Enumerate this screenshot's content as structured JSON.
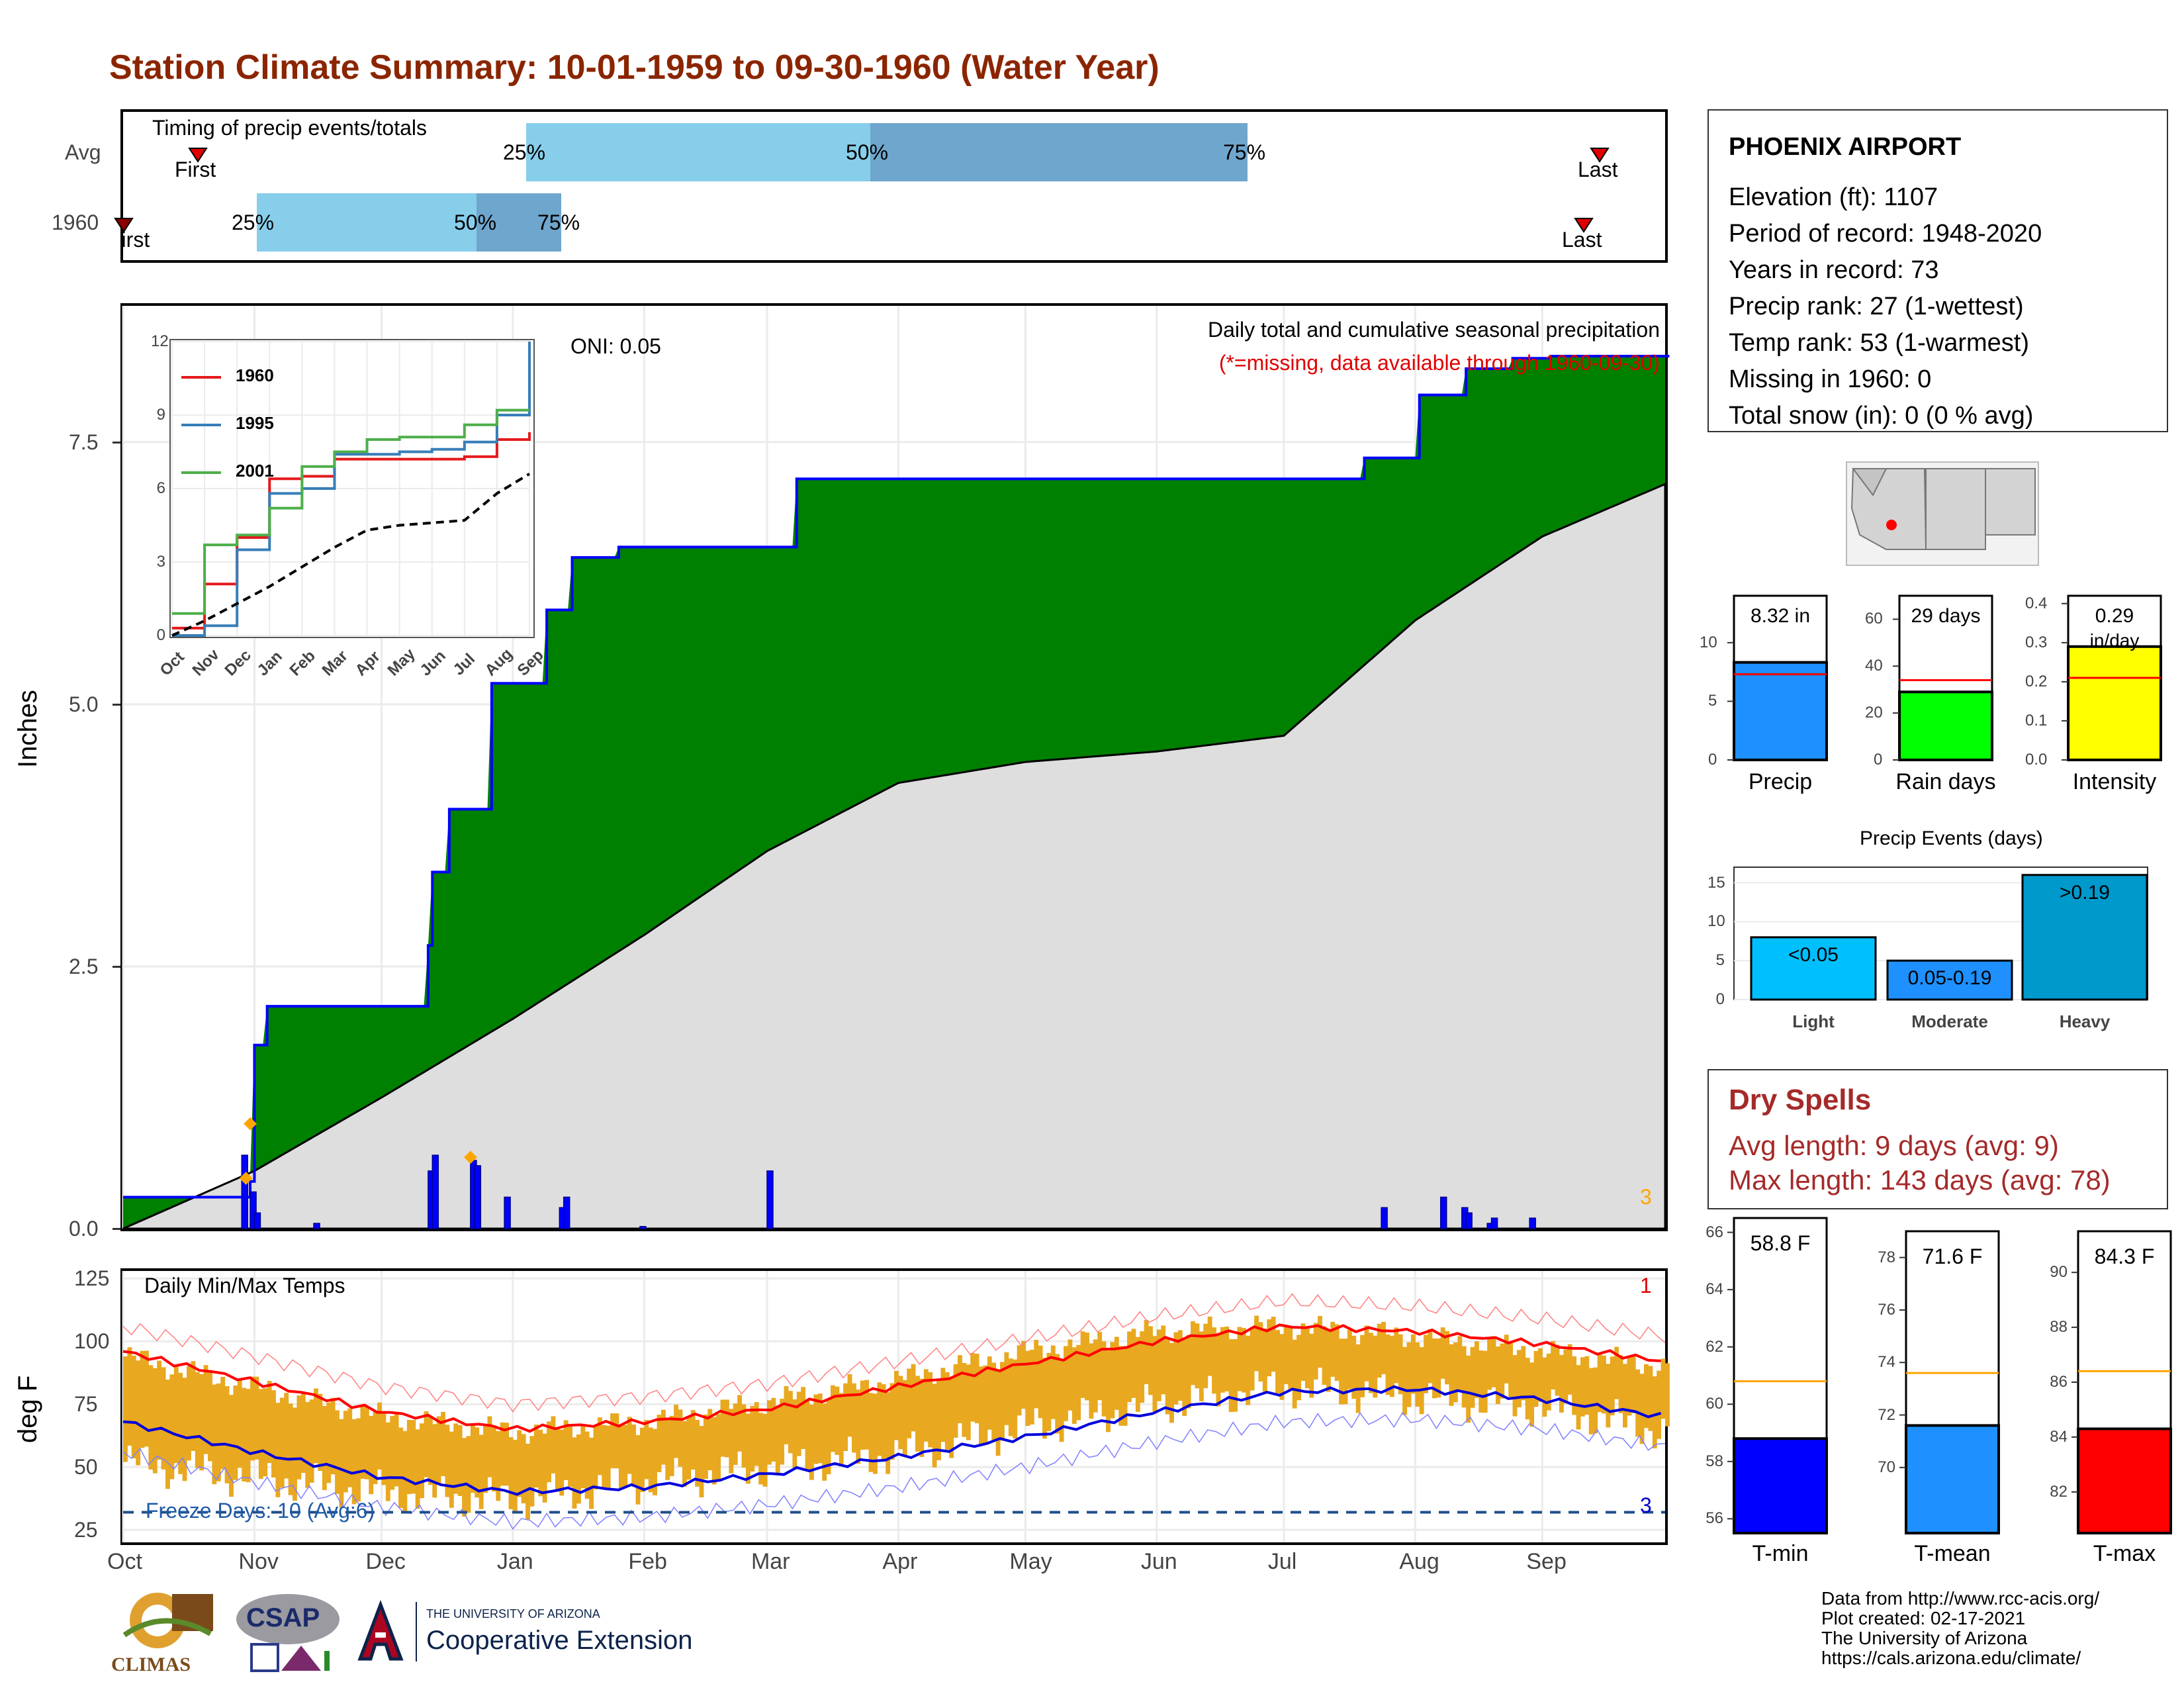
{
  "title": "Station Climate Summary: 10-01-1959 to 09-30-1960 (Water Year)",
  "timing": {
    "heading": "Timing of precip events/totals",
    "row_labels": [
      "Avg",
      "1960"
    ],
    "avg": {
      "first_label": "First",
      "last_label": "Last",
      "p25": "25%",
      "p50": "50%",
      "p75": "75%"
    },
    "y1960": {
      "first_label": "First",
      "last_label": "Last",
      "p25": "25%",
      "p50": "50%",
      "p75": "75%"
    }
  },
  "station": {
    "name": "PHOENIX AIRPORT",
    "lines": [
      "Elevation (ft): 1107",
      "Period of record: 1948-2020",
      "Years in record: 73",
      "Precip rank: 27 (1-wettest)",
      "Temp rank: 53 (1-warmest)",
      "Missing in 1960: 0",
      "Total snow (in): 0 (0 % avg)"
    ]
  },
  "main_precip": {
    "ylabel": "Inches",
    "yticks": [
      "0.0",
      "2.5",
      "5.0",
      "7.5"
    ],
    "header": "Daily total and cumulative seasonal precipitation",
    "subheader": "(*=missing, data available through 1960-09-30)",
    "oni": "ONI: 0.05",
    "corner_count": "3",
    "colors": {
      "surplus": "#008000",
      "deficit": "#8b4513",
      "avg_fill": "#dedede",
      "cum_line": "#0000ff",
      "daily": "#0000ff"
    }
  },
  "inset": {
    "xticks": [
      "Oct",
      "Nov",
      "Dec",
      "Jan",
      "Feb",
      "Mar",
      "Apr",
      "May",
      "Jun",
      "Jul",
      "Aug",
      "Sep"
    ],
    "yticks": [
      "0",
      "3",
      "6",
      "9",
      "12"
    ],
    "legend": [
      "1960",
      "1995",
      "2001"
    ],
    "colors": [
      "#e41a1c",
      "#377eb8",
      "#4daf4a"
    ]
  },
  "temps": {
    "heading": "Daily Min/Max Temps",
    "ylabel": "deg F",
    "yticks": [
      "25",
      "50",
      "75",
      "100",
      "125"
    ],
    "xticks": [
      "Oct",
      "Nov",
      "Dec",
      "Jan",
      "Feb",
      "Mar",
      "Apr",
      "May",
      "Jun",
      "Jul",
      "Aug",
      "Sep"
    ],
    "freeze": "Freeze Days: 10 (Avg:6)",
    "max_count": "1",
    "min_count": "3"
  },
  "bars_small": {
    "precip": {
      "value": "8.32 in",
      "label": "Precip",
      "yticks": [
        "0",
        "5",
        "10"
      ]
    },
    "raindays": {
      "value": "29 days",
      "label": "Rain days",
      "yticks": [
        "0",
        "20",
        "40",
        "60"
      ]
    },
    "intensity": {
      "value": "0.29",
      "unit": "in/day",
      "label": "Intensity",
      "yticks": [
        "0.0",
        "0.1",
        "0.2",
        "0.3",
        "0.4"
      ]
    }
  },
  "events": {
    "title": "Precip Events (days)",
    "yticks": [
      "0",
      "5",
      "10",
      "15"
    ],
    "categories": [
      "Light",
      "Moderate",
      "Heavy"
    ],
    "bar_labels": [
      "<0.05",
      "0.05-0.19",
      ">0.19"
    ]
  },
  "dry_spells": {
    "title": "Dry Spells",
    "avg": "Avg length: 9 days (avg: 9)",
    "max": "Max length: 143 days (avg: 78)"
  },
  "temp_bars": {
    "tmin": {
      "value": "58.8 F",
      "label": "T-min",
      "yticks": [
        "56",
        "58",
        "60",
        "62",
        "64",
        "66"
      ]
    },
    "tmean": {
      "value": "71.6 F",
      "label": "T-mean",
      "yticks": [
        "70",
        "72",
        "74",
        "76",
        "78"
      ]
    },
    "tmax": {
      "value": "84.3 F",
      "label": "T-max",
      "yticks": [
        "82",
        "84",
        "86",
        "88",
        "90"
      ]
    }
  },
  "footer": [
    "Data from http://www.rcc-acis.org/",
    "Plot created: 02-17-2021",
    "The University of Arizona",
    "https://cals.arizona.edu/climate/"
  ],
  "logos": {
    "climas": "CLIMAS",
    "csap": "CSAP",
    "ua_small": "THE UNIVERSITY OF ARIZONA",
    "coop": "Cooperative Extension"
  },
  "chart_data": [
    {
      "type": "area",
      "name": "cumulative precipitation",
      "x_months": [
        "Oct",
        "Nov",
        "Dec",
        "Jan",
        "Feb",
        "Mar",
        "Apr",
        "May",
        "Jun",
        "Jul",
        "Aug",
        "Sep"
      ],
      "ylim": [
        0,
        8.8
      ],
      "cumulative_1960_steps": [
        [
          0,
          0.3
        ],
        [
          30,
          0.45
        ],
        [
          31,
          1.75
        ],
        [
          34,
          2.12
        ],
        [
          71,
          2.12
        ],
        [
          72,
          2.7
        ],
        [
          73,
          3.4
        ],
        [
          77,
          4.0
        ],
        [
          86,
          4.0
        ],
        [
          87,
          5.2
        ],
        [
          95,
          5.2
        ],
        [
          100,
          5.9
        ],
        [
          106,
          6.4
        ],
        [
          117,
          6.5
        ],
        [
          158,
          6.5
        ],
        [
          159,
          7.15
        ],
        [
          292,
          7.15
        ],
        [
          293,
          7.35
        ],
        [
          305,
          7.35
        ],
        [
          306,
          7.95
        ],
        [
          316,
          7.95
        ],
        [
          317,
          8.2
        ],
        [
          322,
          8.2
        ],
        [
          323,
          8.2
        ],
        [
          328,
          8.3
        ],
        [
          337,
          8.32
        ],
        [
          364,
          8.32
        ]
      ],
      "average_cumulative": [
        [
          0,
          0.0
        ],
        [
          31,
          0.55
        ],
        [
          61,
          1.25
        ],
        [
          92,
          2.0
        ],
        [
          123,
          2.8
        ],
        [
          152,
          3.6
        ],
        [
          183,
          4.25
        ],
        [
          213,
          4.45
        ],
        [
          244,
          4.55
        ],
        [
          274,
          4.7
        ],
        [
          305,
          5.8
        ],
        [
          335,
          6.6
        ],
        [
          364,
          7.1
        ]
      ],
      "daily_precip": [
        [
          28,
          0.7
        ],
        [
          30,
          0.35
        ],
        [
          31,
          0.15
        ],
        [
          45,
          0.05
        ],
        [
          72,
          0.55
        ],
        [
          73,
          0.7
        ],
        [
          82,
          0.65
        ],
        [
          83,
          0.6
        ],
        [
          90,
          0.3
        ],
        [
          103,
          0.2
        ],
        [
          104,
          0.3
        ],
        [
          122,
          0.02
        ],
        [
          152,
          0.55
        ],
        [
          297,
          0.2
        ],
        [
          311,
          0.3
        ],
        [
          316,
          0.2
        ],
        [
          317,
          0.15
        ],
        [
          322,
          0.05
        ],
        [
          323,
          0.1
        ],
        [
          332,
          0.1
        ]
      ]
    },
    {
      "type": "line",
      "name": "inset cumulative precipitation",
      "x": [
        "Oct",
        "Nov",
        "Dec",
        "Jan",
        "Feb",
        "Mar",
        "Apr",
        "May",
        "Jun",
        "Jul",
        "Aug",
        "Sep"
      ],
      "ylim": [
        0,
        12
      ],
      "series": [
        {
          "name": "1960",
          "values": [
            0.3,
            2.1,
            4.0,
            6.4,
            6.5,
            7.2,
            7.2,
            7.2,
            7.2,
            7.3,
            8.0,
            8.3
          ]
        },
        {
          "name": "1995",
          "values": [
            0.0,
            0.4,
            3.5,
            5.8,
            6.0,
            7.4,
            7.4,
            7.5,
            7.6,
            7.9,
            9.0,
            12.0
          ]
        },
        {
          "name": "2001",
          "values": [
            0.9,
            3.7,
            4.1,
            5.2,
            6.9,
            7.5,
            8.0,
            8.1,
            8.1,
            8.6,
            9.2,
            9.2
          ]
        },
        {
          "values": [
            0.0,
            0.6,
            1.3,
            2.0,
            2.8,
            3.6,
            4.3,
            4.5,
            4.6,
            4.7,
            5.8,
            6.6
          ]
        }
      ]
    },
    {
      "type": "line",
      "name": "daily temperatures",
      "ylim": [
        20,
        128
      ],
      "series": [
        {
          "name": "Daily Min/Max Temps",
          "values": [
            [
              0,
              52,
              94
            ],
            [
              30,
              46,
              82
            ],
            [
              61,
              40,
              70
            ],
            [
              92,
              37,
              64
            ],
            [
              123,
              44,
              68
            ],
            [
              152,
              50,
              76
            ],
            [
              183,
              55,
              85
            ],
            [
              213,
              66,
              96
            ],
            [
              244,
              75,
              104
            ],
            [
              274,
              82,
              106
            ],
            [
              305,
              78,
              102
            ],
            [
              335,
              74,
              96
            ],
            [
              364,
              64,
              90
            ]
          ]
        },
        {
          "name": "avg max",
          "values": [
            96,
            84,
            72,
            65,
            68,
            73,
            82,
            91,
            100,
            106,
            104,
            99,
            92
          ]
        },
        {
          "name": "avg min",
          "values": [
            68,
            56,
            46,
            40,
            42,
            47,
            54,
            62,
            72,
            80,
            81,
            77,
            70
          ]
        }
      ]
    },
    {
      "type": "bar",
      "name": "Precip",
      "categories": [
        "1960"
      ],
      "values": [
        8.32
      ],
      "reference": 7.3,
      "ylim": [
        0,
        14
      ]
    },
    {
      "type": "bar",
      "name": "Rain days",
      "categories": [
        "1960"
      ],
      "values": [
        29
      ],
      "reference": 34,
      "ylim": [
        0,
        70
      ]
    },
    {
      "type": "bar",
      "name": "Intensity",
      "categories": [
        "1960"
      ],
      "values": [
        0.29
      ],
      "reference": 0.21,
      "ylim": [
        0,
        0.42
      ]
    },
    {
      "type": "bar",
      "name": "Precip Events (days)",
      "categories": [
        "Light",
        "Moderate",
        "Heavy"
      ],
      "values": [
        8,
        5,
        16
      ],
      "ylim": [
        0,
        17
      ]
    },
    {
      "type": "bar",
      "name": "T-min",
      "categories": [
        "1960"
      ],
      "values": [
        58.8
      ],
      "reference": 60.8,
      "ylim": [
        55.5,
        66.5
      ]
    },
    {
      "type": "bar",
      "name": "T-mean",
      "categories": [
        "1960"
      ],
      "values": [
        71.6
      ],
      "reference": 73.6,
      "ylim": [
        67.5,
        79
      ]
    },
    {
      "type": "bar",
      "name": "T-max",
      "categories": [
        "1960"
      ],
      "values": [
        84.3
      ],
      "reference": 86.4,
      "ylim": [
        80.5,
        91.5
      ]
    }
  ]
}
